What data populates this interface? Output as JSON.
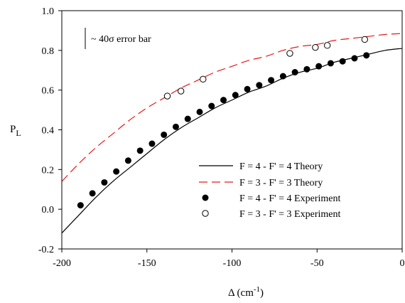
{
  "chart_data": {
    "type": "scatter",
    "xlim": [
      -200,
      0
    ],
    "ylim": [
      -0.2,
      1.0
    ],
    "xticks": [
      -200,
      -150,
      -100,
      -50,
      0
    ],
    "yticks": [
      -0.2,
      0.0,
      0.2,
      0.4,
      0.6,
      0.8,
      1.0
    ],
    "xtick_labels": [
      "-200",
      "-150",
      "-100",
      "-50",
      "0"
    ],
    "ytick_labels": [
      "-0.2",
      "0.0",
      "0.2",
      "0.4",
      "0.6",
      "0.8",
      "1.0"
    ],
    "xlabel": {
      "main": "Δ (cm",
      "sup": "-1",
      "tail": ")"
    },
    "ylabel": {
      "main": "P",
      "sub": "L"
    },
    "grid": false,
    "legend_placement": "bottom-right",
    "error_bar_label": "~ 40σ error bar",
    "colors": {
      "theory44": "#000000",
      "theory33": "#e31a1c",
      "points": "#000000"
    },
    "series": [
      {
        "name": "F = 4 - F' = 4 Theory",
        "kind": "line",
        "style": "solid",
        "x": [
          -200,
          -190,
          -180,
          -170,
          -160,
          -150,
          -140,
          -130,
          -120,
          -110,
          -100,
          -90,
          -80,
          -70,
          -60,
          -50,
          -40,
          -30,
          -20,
          -10,
          0
        ],
        "y": [
          -0.12,
          -0.03,
          0.06,
          0.14,
          0.21,
          0.28,
          0.35,
          0.41,
          0.46,
          0.51,
          0.55,
          0.59,
          0.62,
          0.66,
          0.69,
          0.71,
          0.74,
          0.76,
          0.78,
          0.8,
          0.81
        ]
      },
      {
        "name": "F = 3 - F' = 3 Theory",
        "kind": "line",
        "style": "dashed",
        "x": [
          -200,
          -190,
          -180,
          -170,
          -160,
          -150,
          -140,
          -130,
          -120,
          -110,
          -100,
          -90,
          -80,
          -70,
          -60,
          -50,
          -40,
          -30,
          -20,
          -10,
          0
        ],
        "y": [
          0.14,
          0.23,
          0.31,
          0.38,
          0.45,
          0.51,
          0.56,
          0.61,
          0.65,
          0.69,
          0.72,
          0.75,
          0.77,
          0.8,
          0.82,
          0.83,
          0.85,
          0.86,
          0.87,
          0.88,
          0.885
        ]
      },
      {
        "name": "F = 4 - F' = 4 Experiment",
        "kind": "points",
        "marker": "filled",
        "x": [
          -189,
          -182,
          -175,
          -168,
          -161,
          -154,
          -147,
          -140,
          -133,
          -126,
          -119,
          -112,
          -105,
          -98,
          -91,
          -84,
          -77,
          -70,
          -63,
          -56,
          -49,
          -42,
          -35,
          -28,
          -21
        ],
        "y": [
          0.02,
          0.08,
          0.135,
          0.19,
          0.245,
          0.295,
          0.33,
          0.375,
          0.415,
          0.455,
          0.49,
          0.52,
          0.55,
          0.575,
          0.605,
          0.625,
          0.65,
          0.67,
          0.69,
          0.705,
          0.72,
          0.735,
          0.745,
          0.76,
          0.775
        ]
      },
      {
        "name": "F = 3 - F' = 3 Experiment",
        "kind": "points",
        "marker": "open",
        "x": [
          -138,
          -130,
          -117,
          -66,
          -51,
          -44,
          -22
        ],
        "y": [
          0.57,
          0.595,
          0.655,
          0.785,
          0.815,
          0.825,
          0.855
        ]
      }
    ]
  }
}
